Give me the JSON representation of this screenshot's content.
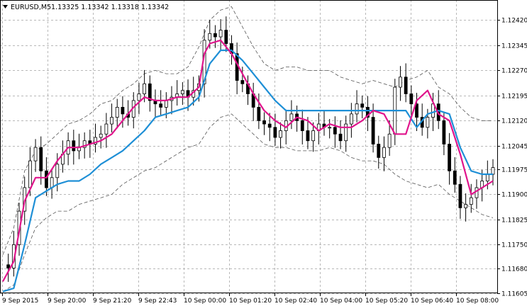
{
  "header": {
    "symbol": "EURUSD,M5",
    "ohlc": "1.13325 1.13342 1.13318 1.13342"
  },
  "chart_data": {
    "type": "line",
    "title": "EURUSD,M5  1.13325 1.13342 1.13318 1.13342",
    "xlabel": "",
    "ylabel": "",
    "ylim": [
      1.11605,
      1.1248
    ],
    "grid": true,
    "x": [
      "9 Sep 2015",
      "9 Sep 20:00",
      "9 Sep 21:20",
      "9 Sep 22:43",
      "10 Sep 00:00",
      "10 Sep 01:20",
      "10 Sep 02:40",
      "10 Sep 04:00",
      "10 Sep 05:20",
      "10 Sep 06:40",
      "10 Sep 08:00"
    ],
    "y_ticks": [
      "1.12420",
      "1.12345",
      "1.12270",
      "1.12195",
      "1.12120",
      "1.12045",
      "1.11975",
      "1.11900",
      "1.11825",
      "1.11750",
      "1.11680",
      "1.11605"
    ],
    "series": [
      {
        "type": "candlestick",
        "color": "#000000",
        "x": [
          0,
          2,
          4,
          6,
          8,
          10,
          12,
          14,
          16,
          18,
          20,
          22,
          24,
          26,
          28,
          30,
          32,
          34,
          36,
          38,
          40,
          42,
          44,
          46,
          48,
          50,
          52,
          54,
          56,
          58,
          60,
          62,
          64,
          66,
          68,
          70,
          72,
          74,
          76,
          78,
          80,
          82,
          84,
          86,
          88,
          90,
          92,
          94,
          96,
          98,
          100,
          102,
          104,
          106,
          108,
          110,
          112,
          114,
          116,
          118,
          120,
          122,
          124,
          126,
          128,
          130,
          132,
          134,
          136,
          138,
          140,
          142,
          144,
          146,
          148,
          150,
          152,
          154,
          156,
          158,
          160,
          162,
          164,
          166,
          168,
          170,
          172,
          174,
          176,
          178,
          180
        ],
        "values": [
          1.1169,
          1.1168,
          1.1175,
          1.1185,
          1.1192,
          1.12,
          1.1204,
          1.1197,
          1.1192,
          1.1195,
          1.1199,
          1.1202,
          1.1206,
          1.1203,
          1.1204,
          1.1206,
          1.1205,
          1.1207,
          1.1208,
          1.1211,
          1.1213,
          1.1216,
          1.1214,
          1.1213,
          1.1218,
          1.122,
          1.1223,
          1.1218,
          1.1217,
          1.1216,
          1.1218,
          1.1219,
          1.122,
          1.1221,
          1.1219,
          1.1221,
          1.1223,
          1.1236,
          1.1238,
          1.1237,
          1.1239,
          1.1235,
          1.1232,
          1.1224,
          1.1223,
          1.122,
          1.1216,
          1.1212,
          1.1211,
          1.121,
          1.1207,
          1.1209,
          1.1212,
          1.1214,
          1.1212,
          1.1209,
          1.1206,
          1.1209,
          1.1211,
          1.121,
          1.121,
          1.1208,
          1.1206,
          1.1211,
          1.1214,
          1.1217,
          1.1216,
          1.1213,
          1.1205,
          1.1201,
          1.1204,
          1.1208,
          1.1222,
          1.1225,
          1.122,
          1.1217,
          1.1213,
          1.121,
          1.1213,
          1.1217,
          1.1212,
          1.1205,
          1.1197,
          1.1193,
          1.1186,
          1.1187,
          1.1189,
          1.1192,
          1.1194,
          1.1196,
          1.1198
        ]
      },
      {
        "color": "#e0148c",
        "x": [
          0,
          4,
          8,
          12,
          16,
          20,
          24,
          28,
          32,
          36,
          40,
          44,
          48,
          52,
          56,
          60,
          64,
          68,
          72,
          74,
          76,
          80,
          84,
          88,
          92,
          96,
          100,
          104,
          108,
          112,
          116,
          120,
          124,
          128,
          132,
          136,
          140,
          144,
          148,
          152,
          156,
          160,
          164,
          168,
          172,
          176,
          180
        ],
        "values": [
          1.1164,
          1.117,
          1.1188,
          1.1195,
          1.1195,
          1.12,
          1.1204,
          1.1204,
          1.1205,
          1.1206,
          1.1208,
          1.1212,
          1.1216,
          1.1219,
          1.1218,
          1.1218,
          1.1219,
          1.1219,
          1.1222,
          1.1232,
          1.1235,
          1.1236,
          1.1232,
          1.1226,
          1.122,
          1.1215,
          1.1212,
          1.121,
          1.1213,
          1.1212,
          1.1209,
          1.1211,
          1.121,
          1.121,
          1.1212,
          1.1215,
          1.1214,
          1.1208,
          1.1208,
          1.1218,
          1.1221,
          1.1214,
          1.1212,
          1.1202,
          1.119,
          1.1192,
          1.1194
        ]
      },
      {
        "color": "#1e8fd6",
        "x": [
          0,
          4,
          8,
          12,
          16,
          20,
          24,
          28,
          32,
          36,
          40,
          44,
          48,
          52,
          56,
          60,
          64,
          68,
          72,
          76,
          80,
          84,
          88,
          92,
          96,
          100,
          104,
          108,
          112,
          116,
          120,
          124,
          128,
          132,
          136,
          140,
          144,
          148,
          152,
          156,
          160,
          164,
          168,
          172,
          176,
          180
        ],
        "values": [
          1.1161,
          1.1162,
          1.1175,
          1.1189,
          1.1191,
          1.1193,
          1.1194,
          1.1194,
          1.1196,
          1.1199,
          1.1201,
          1.1203,
          1.1206,
          1.1209,
          1.1213,
          1.1214,
          1.1215,
          1.1216,
          1.1219,
          1.1229,
          1.1233,
          1.1233,
          1.123,
          1.1226,
          1.1222,
          1.1218,
          1.1215,
          1.1215,
          1.1215,
          1.1215,
          1.1215,
          1.1215,
          1.1215,
          1.1215,
          1.1215,
          1.1215,
          1.1215,
          1.1215,
          1.121,
          1.1214,
          1.1215,
          1.1214,
          1.1204,
          1.1197,
          1.1196,
          1.1196
        ]
      },
      {
        "color": "#555555",
        "x": [
          0,
          4,
          8,
          12,
          16,
          20,
          24,
          28,
          32,
          36,
          40,
          44,
          48,
          52,
          56,
          60,
          64,
          68,
          72,
          76,
          80,
          84,
          88,
          92,
          96,
          100,
          104,
          108,
          112,
          116,
          120,
          124,
          128,
          132,
          136,
          140,
          144,
          148,
          152,
          156,
          160,
          164,
          168,
          172,
          176,
          180
        ],
        "values": [
          1.1172,
          1.118,
          1.1197,
          1.1203,
          1.1205,
          1.1208,
          1.1211,
          1.1212,
          1.1214,
          1.1217,
          1.1218,
          1.1221,
          1.1223,
          1.1226,
          1.1227,
          1.1226,
          1.1226,
          1.1228,
          1.1234,
          1.1242,
          1.1245,
          1.1246,
          1.124,
          1.1234,
          1.1229,
          1.1227,
          1.1228,
          1.1228,
          1.1227,
          1.1227,
          1.1227,
          1.1225,
          1.1224,
          1.1223,
          1.1224,
          1.1223,
          1.1222,
          1.1224,
          1.1225,
          1.1227,
          1.1222,
          1.122,
          1.1216,
          1.1213,
          1.1212,
          1.1212
        ]
      },
      {
        "color": "#555555",
        "x": [
          0,
          4,
          8,
          12,
          16,
          20,
          24,
          28,
          32,
          36,
          40,
          44,
          48,
          52,
          56,
          60,
          64,
          68,
          72,
          76,
          80,
          84,
          88,
          92,
          96,
          100,
          104,
          108,
          112,
          116,
          120,
          124,
          128,
          132,
          136,
          140,
          144,
          148,
          152,
          156,
          160,
          164,
          168,
          172,
          176,
          180
        ],
        "values": [
          1.1161,
          1.1163,
          1.1172,
          1.118,
          1.1183,
          1.1185,
          1.1185,
          1.1187,
          1.1188,
          1.1189,
          1.119,
          1.1193,
          1.1195,
          1.1197,
          1.1198,
          1.12,
          1.1202,
          1.1204,
          1.1205,
          1.121,
          1.1213,
          1.1214,
          1.1211,
          1.1208,
          1.1205,
          1.1204,
          1.1204,
          1.1203,
          1.1203,
          1.1203,
          1.1204,
          1.1203,
          1.1201,
          1.12,
          1.12,
          1.1199,
          1.1196,
          1.1194,
          1.1193,
          1.1192,
          1.1193,
          1.119,
          1.1188,
          1.1186,
          1.1184,
          1.1183
        ]
      }
    ]
  }
}
